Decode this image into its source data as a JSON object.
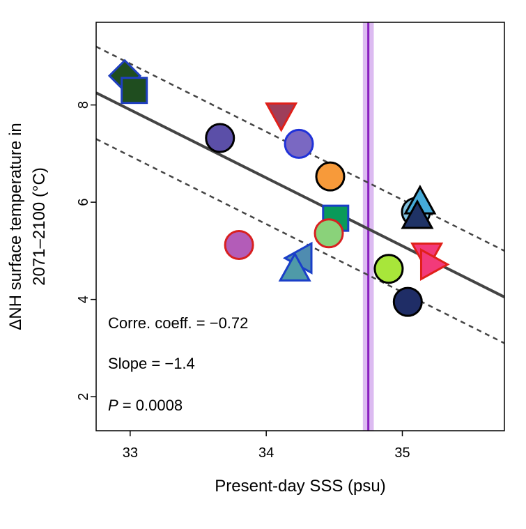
{
  "chart_data": {
    "type": "scatter",
    "xlabel": "Present-day SSS (psu)",
    "ylabel_line1": "ΔNH surface temperature in",
    "ylabel_line2": "2071–2100 (°C)",
    "xlim": [
      32.75,
      35.75
    ],
    "ylim": [
      1.3,
      9.7
    ],
    "xticks": [
      33,
      34,
      35
    ],
    "yticks": [
      2,
      4,
      6,
      8
    ],
    "regression": {
      "slope": -1.4,
      "intercept": 54.1,
      "band_offset": 0.95
    },
    "observed_sss": 34.75,
    "observed_band": [
      34.71,
      34.79
    ],
    "annotations": {
      "corr": "Corre. coeff. = −0.72",
      "slope": "Slope = −1.4",
      "p_label": "P",
      "p_value": " = 0.0008"
    },
    "points": [
      {
        "x": 32.96,
        "y": 8.6,
        "shape": "diamond",
        "fill": "#1f4d1f",
        "stroke": "#1f3fbf"
      },
      {
        "x": 33.03,
        "y": 8.3,
        "shape": "square",
        "fill": "#1f4d1f",
        "stroke": "#1f3fbf"
      },
      {
        "x": 33.66,
        "y": 7.32,
        "shape": "circle",
        "fill": "#5b4fa8",
        "stroke": "#000000"
      },
      {
        "x": 34.11,
        "y": 7.8,
        "shape": "triangle-down",
        "fill": "#9e3e5a",
        "stroke": "#e0201a"
      },
      {
        "x": 34.24,
        "y": 7.2,
        "shape": "circle",
        "fill": "#7a68c2",
        "stroke": "#2032d8"
      },
      {
        "x": 34.47,
        "y": 6.53,
        "shape": "circle",
        "fill": "#f79a3a",
        "stroke": "#000000"
      },
      {
        "x": 34.51,
        "y": 5.67,
        "shape": "square",
        "fill": "#0a9a5a",
        "stroke": "#1a3fc8"
      },
      {
        "x": 34.46,
        "y": 5.36,
        "shape": "circle",
        "fill": "#8ad27a",
        "stroke": "#d82020"
      },
      {
        "x": 33.8,
        "y": 5.12,
        "shape": "circle",
        "fill": "#b35cb8",
        "stroke": "#d82020"
      },
      {
        "x": 34.25,
        "y": 4.85,
        "shape": "triangle-left",
        "fill": "#4f8cb0",
        "stroke": "#1a3fc8"
      },
      {
        "x": 34.21,
        "y": 4.62,
        "shape": "triangle-up",
        "fill": "#4f9aa8",
        "stroke": "#1a3fc8"
      },
      {
        "x": 35.1,
        "y": 5.8,
        "shape": "circle",
        "fill": "#7fc0de",
        "stroke": "#000000"
      },
      {
        "x": 35.13,
        "y": 6.0,
        "shape": "triangle-up",
        "fill": "#45aad8",
        "stroke": "#000000"
      },
      {
        "x": 35.11,
        "y": 5.7,
        "shape": "triangle-up",
        "fill": "#1f3366",
        "stroke": "#000000"
      },
      {
        "x": 35.18,
        "y": 4.92,
        "shape": "triangle-down",
        "fill": "#f23a7a",
        "stroke": "#e0201a"
      },
      {
        "x": 35.22,
        "y": 4.72,
        "shape": "triangle-right",
        "fill": "#f23a7a",
        "stroke": "#e0201a"
      },
      {
        "x": 34.9,
        "y": 4.63,
        "shape": "circle",
        "fill": "#a8e63a",
        "stroke": "#000000"
      },
      {
        "x": 35.04,
        "y": 3.95,
        "shape": "circle",
        "fill": "#1f2d66",
        "stroke": "#000000"
      }
    ]
  }
}
